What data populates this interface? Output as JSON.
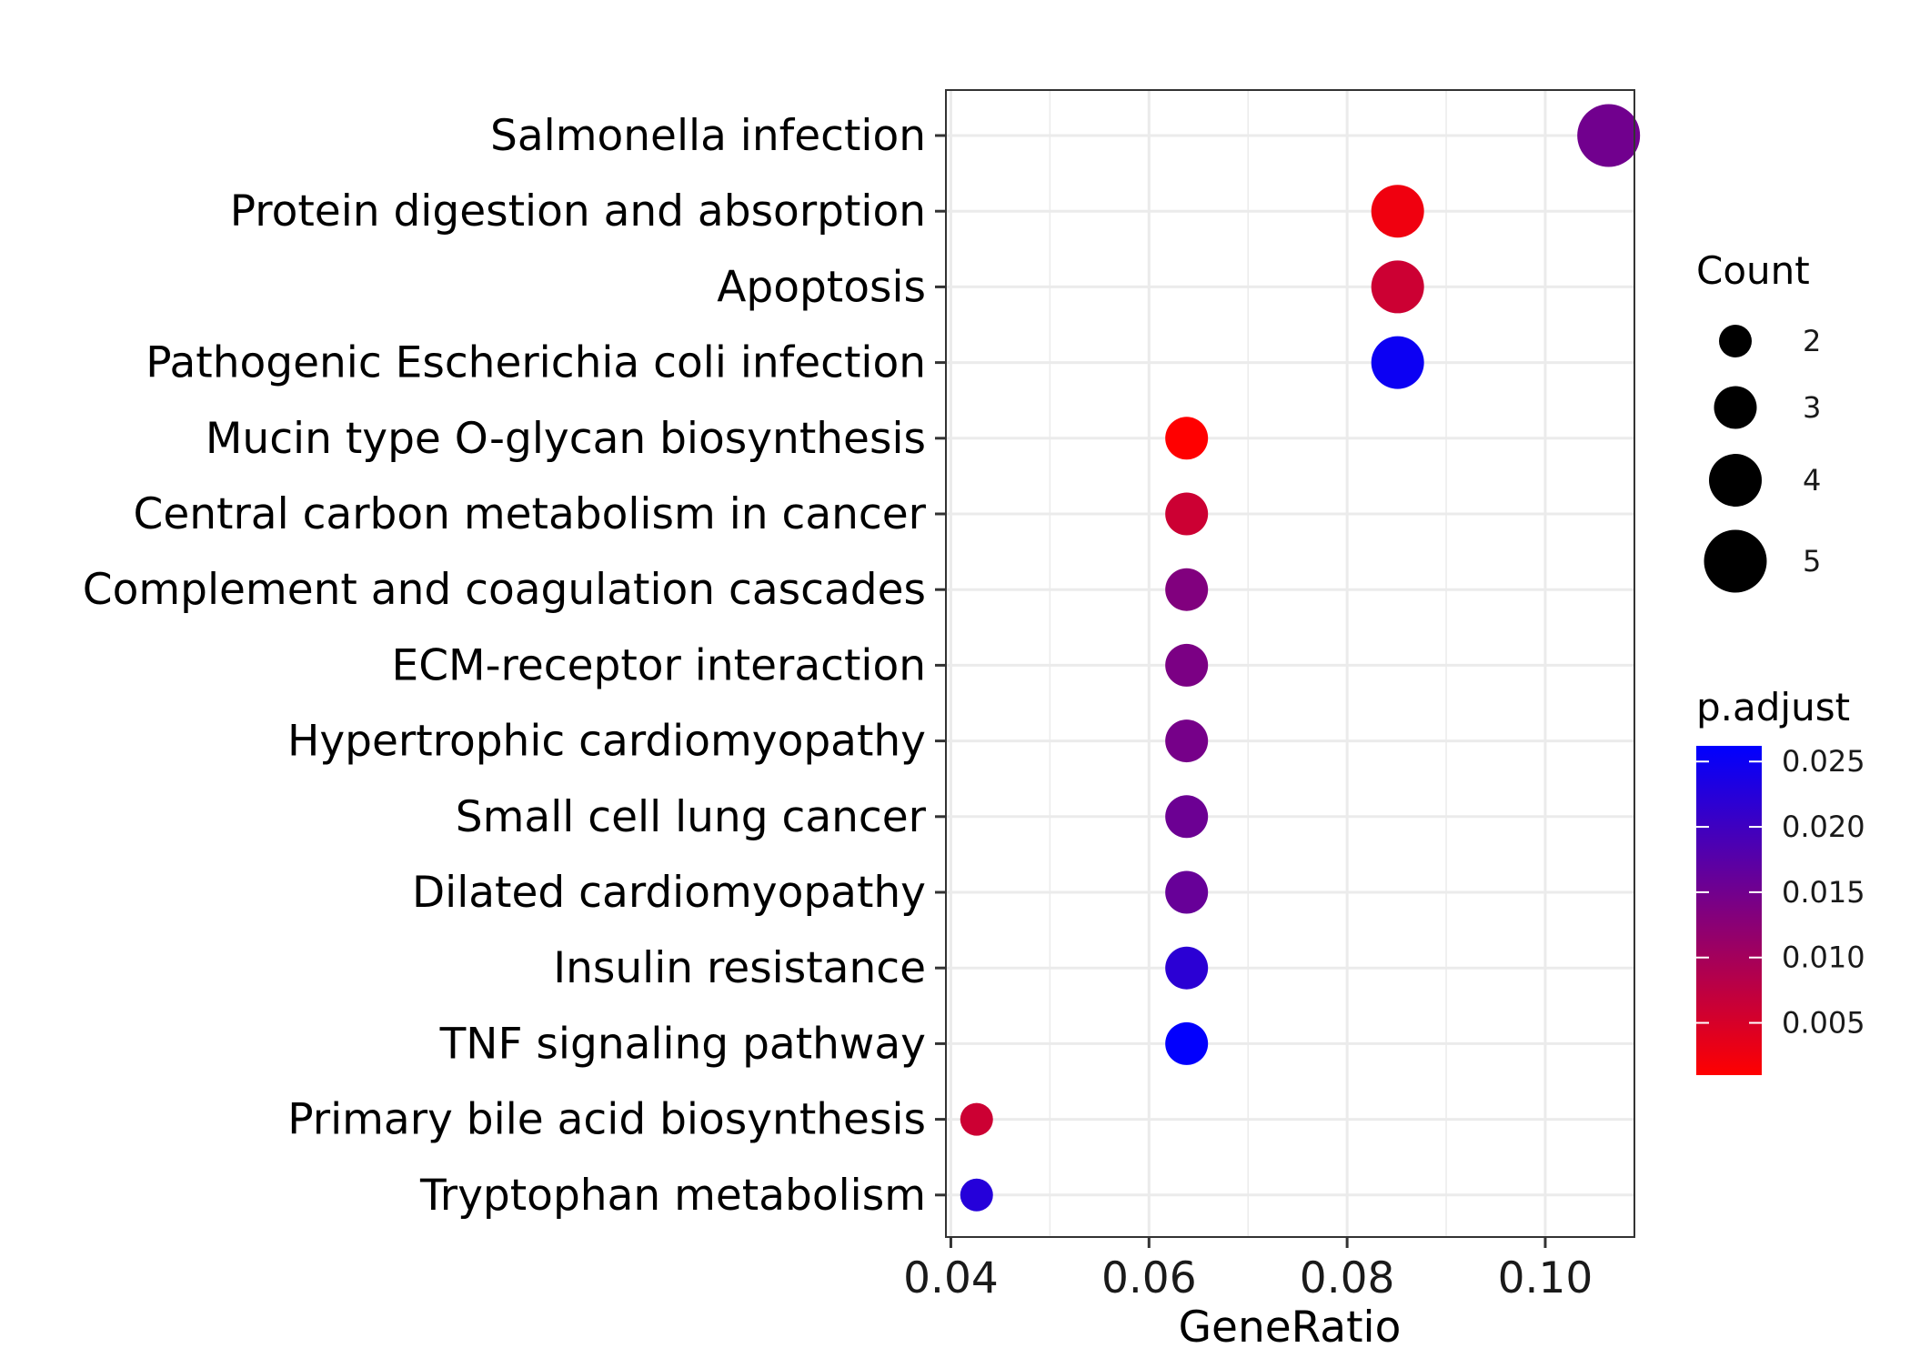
{
  "chart_data": {
    "type": "scatter",
    "xlabel": "GeneRatio",
    "ylabel": "",
    "xlim": [
      0.0395,
      0.109
    ],
    "x_ticks": [
      "0.04",
      "0.06",
      "0.08",
      "0.10"
    ],
    "x_tick_values": [
      0.04,
      0.06,
      0.08,
      0.1
    ],
    "grid": true,
    "categories": [
      "Salmonella infection",
      "Protein digestion and absorption",
      "Apoptosis",
      "Pathogenic Escherichia coli infection",
      "Mucin type O-glycan biosynthesis",
      "Central carbon metabolism in cancer",
      "Complement and coagulation cascades",
      "ECM-receptor interaction",
      "Hypertrophic cardiomyopathy",
      "Small cell lung cancer",
      "Dilated cardiomyopathy",
      "Insulin resistance",
      "TNF signaling pathway",
      "Primary bile acid biosynthesis",
      "Tryptophan metabolism"
    ],
    "points": [
      {
        "category": "Salmonella infection",
        "gene_ratio": 0.1064,
        "count": 5,
        "p_adjust": 0.015
      },
      {
        "category": "Protein digestion and absorption",
        "gene_ratio": 0.0851,
        "count": 4,
        "p_adjust": 0.0025
      },
      {
        "category": "Apoptosis",
        "gene_ratio": 0.0851,
        "count": 4,
        "p_adjust": 0.006
      },
      {
        "category": "Pathogenic Escherichia coli infection",
        "gene_ratio": 0.0851,
        "count": 4,
        "p_adjust": 0.025
      },
      {
        "category": "Mucin type O-glycan biosynthesis",
        "gene_ratio": 0.0638,
        "count": 3,
        "p_adjust": 0.001
      },
      {
        "category": "Central carbon metabolism in cancer",
        "gene_ratio": 0.0638,
        "count": 3,
        "p_adjust": 0.006
      },
      {
        "category": "Complement and coagulation cascades",
        "gene_ratio": 0.0638,
        "count": 3,
        "p_adjust": 0.0135
      },
      {
        "category": "ECM-receptor interaction",
        "gene_ratio": 0.0638,
        "count": 3,
        "p_adjust": 0.014
      },
      {
        "category": "Hypertrophic cardiomyopathy",
        "gene_ratio": 0.0638,
        "count": 3,
        "p_adjust": 0.0145
      },
      {
        "category": "Small cell lung cancer",
        "gene_ratio": 0.0638,
        "count": 3,
        "p_adjust": 0.0155
      },
      {
        "category": "Dilated cardiomyopathy",
        "gene_ratio": 0.0638,
        "count": 3,
        "p_adjust": 0.016
      },
      {
        "category": "Insulin resistance",
        "gene_ratio": 0.0638,
        "count": 3,
        "p_adjust": 0.022
      },
      {
        "category": "TNF signaling pathway",
        "gene_ratio": 0.0638,
        "count": 3,
        "p_adjust": 0.026
      },
      {
        "category": "Primary bile acid biosynthesis",
        "gene_ratio": 0.0426,
        "count": 2,
        "p_adjust": 0.006
      },
      {
        "category": "Tryptophan metabolism",
        "gene_ratio": 0.0426,
        "count": 2,
        "p_adjust": 0.0225
      }
    ],
    "size_legend": {
      "title": "Count",
      "values": [
        2,
        3,
        4,
        5
      ],
      "labels": [
        "2",
        "3",
        "4",
        "5"
      ]
    },
    "color_legend": {
      "title": "p.adjust",
      "range": [
        0.001,
        0.0262
      ],
      "low_color": "#ff0000",
      "high_color": "#0000ff",
      "tick_values": [
        0.005,
        0.01,
        0.015,
        0.02,
        0.025
      ],
      "tick_labels": [
        "0.005",
        "0.010",
        "0.015",
        "0.020",
        "0.025"
      ]
    },
    "panel_background": "#ffffff",
    "grid_color": "#ebebeb"
  }
}
